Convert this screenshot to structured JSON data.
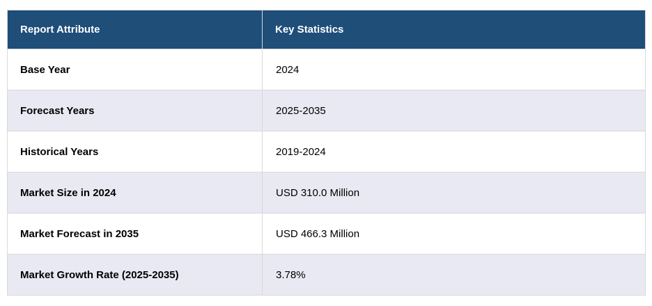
{
  "table": {
    "name": "report-summary-table",
    "columns": [
      "Report Attribute",
      "Key Statistics"
    ],
    "rows": [
      {
        "attribute": "Base Year",
        "value": "2024"
      },
      {
        "attribute": "Forecast Years",
        "value": "2025-2035"
      },
      {
        "attribute": "Historical Years",
        "value": "2019-2024"
      },
      {
        "attribute": "Market Size in 2024",
        "value": "USD 310.0 Million"
      },
      {
        "attribute": "Market Forecast in 2035",
        "value": "USD 466.3 Million"
      },
      {
        "attribute": "Market Growth Rate (2025-2035)",
        "value": "3.78%"
      }
    ]
  },
  "colors": {
    "header_bg": "#1F4E79",
    "header_text": "#FFFFFF",
    "alt_row_bg": "#E8E9F2",
    "row_bg": "#FFFFFF",
    "border": "#D9D9D9",
    "body_text": "#000000"
  }
}
